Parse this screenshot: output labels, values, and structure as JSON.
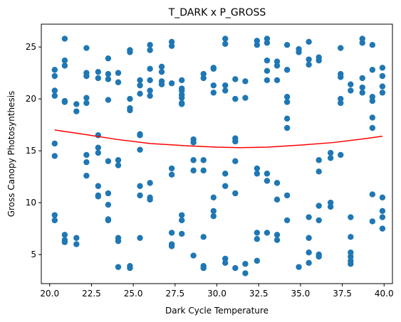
{
  "chart_data": {
    "type": "scatter",
    "title": "T_DARK x P_GROSS",
    "xlabel": "Dark Cycle Temperature",
    "ylabel": "Gross Canopy Photosynthesis",
    "xlim": [
      19.5,
      40.5
    ],
    "ylim": [
      2.2,
      27.2
    ],
    "xticks": [
      20.0,
      22.5,
      25.0,
      27.5,
      30.0,
      32.5,
      35.0,
      37.5,
      40.0
    ],
    "xtick_labels": [
      "20.0",
      "22.5",
      "25.0",
      "27.5",
      "30.0",
      "32.5",
      "35.0",
      "37.5",
      "40.0"
    ],
    "yticks": [
      5,
      10,
      15,
      20,
      25
    ],
    "ytick_labels": [
      "5",
      "10",
      "15",
      "20",
      "25"
    ],
    "grid": false,
    "legend": "none",
    "colors": {
      "points": "#1f77b4",
      "trend": "#ff0000"
    },
    "series": [
      {
        "type": "scatter",
        "x": [
          20.3,
          20.3,
          20.3,
          20.3,
          20.3,
          20.3,
          20.3,
          20.3,
          20.9,
          20.9,
          20.9,
          20.9,
          20.9,
          20.9,
          20.9,
          20.9,
          21.6,
          21.6,
          21.6,
          21.6,
          22.2,
          22.2,
          22.2,
          22.2,
          22.2,
          22.2,
          22.2,
          22.2,
          22.9,
          22.9,
          22.9,
          22.9,
          22.9,
          22.9,
          22.9,
          22.9,
          23.5,
          23.5,
          23.5,
          23.5,
          23.5,
          23.5,
          23.5,
          23.5,
          23.5,
          24.1,
          24.1,
          24.1,
          24.1,
          24.1,
          24.1,
          24.1,
          24.8,
          24.8,
          24.8,
          24.8,
          24.8,
          24.8,
          24.8,
          25.4,
          25.4,
          25.4,
          25.4,
          25.4,
          25.4,
          25.4,
          25.4,
          25.4,
          26.0,
          26.0,
          26.0,
          26.0,
          26.0,
          26.0,
          26.0,
          26.0,
          26.0,
          26.7,
          26.7,
          26.7,
          26.7,
          27.3,
          27.3,
          27.3,
          27.3,
          27.3,
          27.3,
          27.3,
          27.3,
          27.9,
          27.9,
          27.9,
          27.9,
          27.9,
          27.9,
          27.9,
          27.9,
          27.9,
          27.9,
          28.6,
          28.6,
          28.6,
          28.6,
          28.6,
          29.2,
          29.2,
          29.2,
          29.2,
          29.2,
          29.2,
          29.2,
          29.8,
          29.8,
          29.8,
          29.8,
          29.8,
          29.8,
          29.8,
          30.5,
          30.5,
          30.5,
          30.5,
          30.5,
          30.5,
          30.5,
          30.5,
          31.1,
          31.1,
          31.1,
          31.1,
          31.1,
          31.1,
          31.1,
          31.7,
          31.7,
          31.7,
          31.7,
          32.4,
          32.4,
          32.4,
          32.4,
          32.4,
          32.4,
          32.4,
          33.0,
          33.0,
          33.0,
          33.0,
          33.0,
          33.0,
          33.0,
          33.0,
          33.6,
          33.6,
          33.6,
          33.6,
          33.6,
          33.6,
          33.6,
          34.2,
          34.2,
          34.2,
          34.2,
          34.2,
          34.2,
          34.2,
          34.2,
          34.9,
          34.9,
          34.9,
          35.5,
          35.5,
          35.5,
          35.5,
          35.5,
          35.5,
          35.5,
          36.1,
          36.1,
          36.1,
          36.1,
          36.1,
          36.1,
          36.1,
          36.1,
          36.8,
          36.8,
          36.8,
          36.8,
          37.4,
          37.4,
          37.4,
          37.4,
          37.4,
          37.4,
          38.0,
          38.0,
          38.0,
          38.0,
          38.0,
          38.0,
          38.0,
          38.0,
          38.7,
          38.7,
          38.7,
          38.7,
          38.7,
          39.3,
          39.3,
          39.3,
          39.3,
          39.3,
          39.3,
          39.3,
          39.3,
          39.9,
          39.9,
          39.9,
          39.9,
          39.9,
          39.9,
          39.9,
          39.9
        ],
        "y": [
          22.8,
          22.2,
          20.8,
          20.3,
          15.7,
          14.5,
          8.8,
          8.3,
          25.8,
          23.7,
          23.2,
          19.8,
          19.7,
          6.9,
          6.4,
          6.2,
          19.5,
          18.8,
          6.6,
          6.0,
          24.9,
          22.5,
          22.2,
          20.1,
          19.6,
          14.6,
          13.9,
          12.6,
          22.6,
          22.0,
          16.5,
          15.3,
          14.8,
          11.6,
          10.7,
          10.6,
          23.9,
          22.4,
          21.9,
          19.9,
          14.0,
          10.9,
          9.8,
          8.4,
          8.3,
          22.5,
          21.6,
          14.1,
          13.6,
          6.6,
          6.3,
          3.8,
          24.7,
          24.5,
          20.0,
          19.1,
          18.9,
          3.9,
          3.7,
          21.8,
          21.3,
          20.5,
          16.6,
          16.5,
          15.1,
          11.6,
          10.7,
          6.6,
          25.2,
          24.7,
          22.9,
          21.8,
          20.8,
          20.3,
          11.9,
          10.5,
          10.3,
          23.1,
          22.6,
          21.7,
          21.4,
          25.5,
          25.1,
          21.5,
          13.3,
          12.7,
          7.1,
          6.0,
          5.8,
          21.8,
          21.0,
          20.8,
          20.4,
          20.1,
          19.6,
          19.5,
          8.8,
          8.3,
          7.0,
          16.1,
          15.8,
          14.1,
          13.1,
          4.9,
          22.4,
          22.0,
          14.1,
          13.1,
          6.7,
          3.9,
          3.7,
          23.0,
          22.9,
          21.3,
          20.6,
          10.5,
          9.2,
          8.7,
          25.8,
          25.3,
          21.3,
          20.8,
          12.8,
          11.6,
          4.6,
          4.2,
          21.9,
          20.0,
          16.2,
          15.9,
          14.0,
          10.9,
          3.7,
          21.7,
          20.1,
          4.1,
          3.2,
          25.6,
          25.2,
          13.3,
          12.8,
          7.1,
          6.5,
          4.4,
          25.8,
          25.4,
          23.7,
          22.7,
          21.8,
          12.8,
          12.1,
          7.1,
          23.6,
          23.2,
          21.8,
          11.9,
          10.3,
          6.9,
          6.4,
          25.2,
          22.8,
          20.2,
          19.7,
          18.1,
          17.2,
          10.7,
          8.3,
          24.8,
          24.5,
          3.8,
          25.5,
          23.8,
          23.3,
          8.6,
          6.6,
          5.2,
          4.2,
          24.0,
          23.7,
          14.1,
          13.0,
          9.7,
          8.3,
          5.0,
          4.8,
          14.8,
          14.3,
          10.0,
          9.6,
          24.9,
          22.4,
          22.1,
          20.0,
          19.6,
          14.6,
          21.4,
          20.8,
          8.6,
          6.7,
          5.2,
          4.8,
          4.4,
          4.1,
          25.8,
          25.4,
          22.0,
          21.1,
          20.6,
          25.2,
          22.8,
          20.2,
          19.8,
          18.2,
          17.2,
          10.8,
          8.2,
          23.0,
          22.2,
          21.2,
          20.6,
          10.5,
          9.2,
          8.6,
          7.5
        ]
      },
      {
        "type": "line",
        "x": [
          20.3,
          22.0,
          24.0,
          26.0,
          28.0,
          30.0,
          31.4,
          33.0,
          35.0,
          37.0,
          39.0,
          39.9
        ],
        "y": [
          17.0,
          16.6,
          16.1,
          15.7,
          15.5,
          15.35,
          15.3,
          15.35,
          15.55,
          15.8,
          16.2,
          16.4
        ]
      }
    ]
  }
}
